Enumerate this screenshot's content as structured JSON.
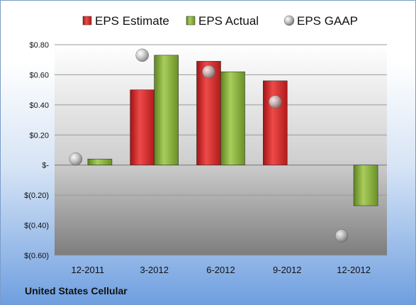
{
  "company": "United States Cellular",
  "colors": {
    "estimate": "#d42a2a",
    "actual": "#86ad3e",
    "gaap": "#b8b8b8",
    "plot_top": "#ffffff",
    "plot_bottom": "#7a7a7a"
  },
  "chart_data": {
    "type": "bar",
    "categories": [
      "12-2011",
      "3-2012",
      "6-2012",
      "9-2012",
      "12-2012"
    ],
    "series": [
      {
        "name": "EPS Estimate",
        "kind": "bar",
        "values": [
          null,
          0.5,
          0.69,
          0.56,
          null
        ]
      },
      {
        "name": "EPS Actual",
        "kind": "bar",
        "values": [
          0.04,
          0.73,
          0.62,
          null,
          -0.27
        ]
      },
      {
        "name": "EPS GAAP",
        "kind": "scatter",
        "values": [
          0.04,
          0.73,
          0.62,
          0.42,
          -0.47
        ]
      }
    ],
    "yticks": [
      {
        "value": 0.8,
        "label": "$0.80"
      },
      {
        "value": 0.6,
        "label": "$0.60"
      },
      {
        "value": 0.4,
        "label": "$0.40"
      },
      {
        "value": 0.2,
        "label": "$0.20"
      },
      {
        "value": 0,
        "label": "$-"
      },
      {
        "value": -0.2,
        "label": "$(0.20)"
      },
      {
        "value": -0.4,
        "label": "$(0.40)"
      },
      {
        "value": -0.6,
        "label": "$(0.60)"
      }
    ],
    "ylim": [
      -0.6,
      0.8
    ],
    "legend_position": "top",
    "grid": true
  }
}
